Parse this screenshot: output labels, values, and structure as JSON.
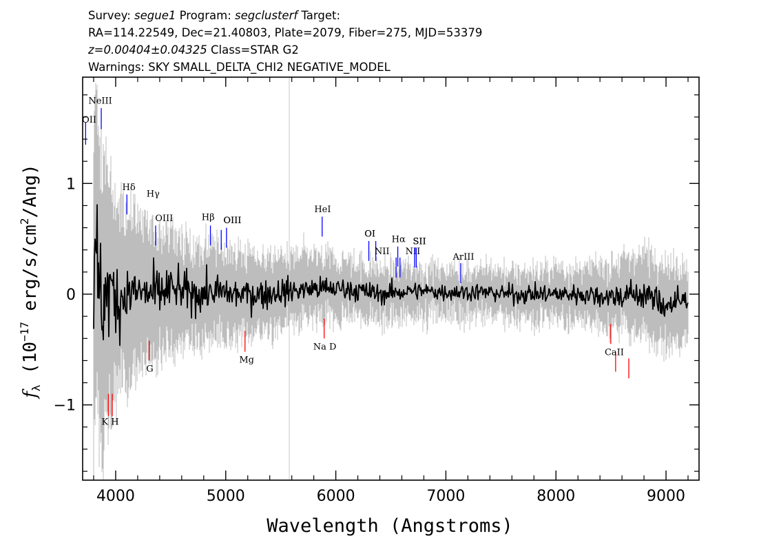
{
  "header": {
    "survey_label": "Survey:",
    "survey": "segue1",
    "program_label": "Program:",
    "program": "segclusterf",
    "target_label": "Target:",
    "line2": "RA=114.22549, Dec=21.40803, Plate=2079, Fiber=275, MJD=53379",
    "redshift": "z=0.00404±0.04325",
    "class_text": "Class=STAR G2",
    "warnings": "Warnings: SKY SMALL_DELTA_CHI2 NEGATIVE_MODEL"
  },
  "chart_data": {
    "type": "line",
    "title": "",
    "xlabel": "Wavelength (Angstroms)",
    "ylabel_parts": [
      "f",
      "λ",
      " (10",
      "−17",
      " erg/s/cm",
      "2",
      "/Ang)"
    ],
    "xlim": [
      3700,
      9300
    ],
    "ylim": [
      -1.68,
      1.96
    ],
    "x_ticks": [
      4000,
      5000,
      6000,
      7000,
      8000,
      9000
    ],
    "x_tick_labels": [
      "4000",
      "5000",
      "6000",
      "7000",
      "8000",
      "9000"
    ],
    "y_ticks": [
      -1,
      0,
      1
    ],
    "y_tick_labels": [
      "−1",
      "0",
      "1"
    ],
    "grid": false,
    "sky_line_x": 5577,
    "series": [
      {
        "role": "error_band",
        "color": "#bdbdbd",
        "x": [
          3800,
          3850,
          3900,
          3950,
          4000,
          4100,
          4200,
          4300,
          4400,
          4500,
          4700,
          5000,
          5300,
          5600,
          5900,
          6200,
          6500,
          6800,
          7100,
          7400,
          7700,
          8000,
          8300,
          8500,
          8700,
          8900,
          9100,
          9200
        ],
        "half_width": [
          1.5,
          1.3,
          1.2,
          1.0,
          0.85,
          0.75,
          0.65,
          0.6,
          0.55,
          0.5,
          0.42,
          0.38,
          0.34,
          0.3,
          0.26,
          0.24,
          0.22,
          0.2,
          0.2,
          0.2,
          0.21,
          0.22,
          0.24,
          0.28,
          0.33,
          0.38,
          0.34,
          0.32
        ]
      },
      {
        "role": "flux",
        "color": "#000000",
        "x": [
          3800,
          3830,
          3850,
          3880,
          3900,
          3950,
          4000,
          4100,
          4200,
          4300,
          4400,
          4500,
          4700,
          4900,
          5100,
          5300,
          5500,
          5800,
          6100,
          6400,
          6700,
          7000,
          7300,
          7600,
          7900,
          8200,
          8500,
          8800,
          9000,
          9200
        ],
        "y": [
          0.0,
          0.3,
          0.05,
          -0.1,
          0.0,
          0.05,
          -0.05,
          0.0,
          0.02,
          0.0,
          0.0,
          0.05,
          0.0,
          0.02,
          0.0,
          0.0,
          0.02,
          0.05,
          0.05,
          0.0,
          0.03,
          0.02,
          0.02,
          0.0,
          0.0,
          0.0,
          -0.02,
          0.0,
          -0.1,
          -0.05
        ]
      }
    ],
    "emission_lines": [
      {
        "label": "OII",
        "x": 3727,
        "y0": 1.35,
        "y1": 1.55,
        "lx": 3760,
        "ly": 1.55
      },
      {
        "label": "NeIII",
        "x": 3869,
        "y0": 1.49,
        "y1": 1.68,
        "lx": 3860,
        "ly": 1.72
      },
      {
        "label": "Hδ",
        "x": 4102,
        "y0": 0.72,
        "y1": 0.9,
        "lx": 4120,
        "ly": 0.94
      },
      {
        "label": "Hγ",
        "x": 4341,
        "y0": 0.85,
        "y1": 0.85,
        "lx": 4340,
        "ly": 0.88
      },
      {
        "label": "OIII",
        "x": 4363,
        "y0": 0.44,
        "y1": 0.62,
        "lx": 4440,
        "ly": 0.66
      },
      {
        "label": "Hβ",
        "x": 4861,
        "y0": 0.44,
        "y1": 0.62,
        "lx": 4840,
        "ly": 0.67
      },
      {
        "label": "OIII",
        "x": 4959,
        "y0": 0.4,
        "y1": 0.58,
        "lx": 5060,
        "ly": 0.64
      },
      {
        "label": "OIII",
        "x": 5007,
        "y0": 0.42,
        "y1": 0.6,
        "lx": 5060,
        "ly": 0.64
      },
      {
        "label": "HeI",
        "x": 5876,
        "y0": 0.52,
        "y1": 0.7,
        "lx": 5880,
        "ly": 0.74
      },
      {
        "label": "OI",
        "x": 6300,
        "y0": 0.3,
        "y1": 0.48,
        "lx": 6310,
        "ly": 0.52
      },
      {
        "label": "OI",
        "x": 6363,
        "y0": 0.3,
        "y1": 0.48,
        "lx": 6310,
        "ly": 0.52
      },
      {
        "label": "NII",
        "x": 6548,
        "y0": 0.15,
        "y1": 0.33,
        "lx": 6420,
        "ly": 0.36
      },
      {
        "label": "Hα",
        "x": 6563,
        "y0": 0.25,
        "y1": 0.43,
        "lx": 6570,
        "ly": 0.47
      },
      {
        "label": "NII",
        "x": 6583,
        "y0": 0.15,
        "y1": 0.33,
        "lx": 6700,
        "ly": 0.36
      },
      {
        "label": "SII",
        "x": 6716,
        "y0": 0.24,
        "y1": 0.42,
        "lx": 6760,
        "ly": 0.45
      },
      {
        "label": "SII",
        "x": 6731,
        "y0": 0.24,
        "y1": 0.42,
        "lx": 6760,
        "ly": 0.45
      },
      {
        "label": "ArIII",
        "x": 7135,
        "y0": 0.1,
        "y1": 0.28,
        "lx": 7160,
        "ly": 0.31
      }
    ],
    "absorption_lines": [
      {
        "label": "K",
        "x": 3934,
        "y0": -0.9,
        "y1": -1.1
      },
      {
        "label": "H",
        "x": 3969,
        "y0": -0.9,
        "y1": -1.1
      },
      {
        "label": "G",
        "x": 4305,
        "y0": -0.42,
        "y1": -0.6,
        "lx": 4310,
        "ly": -0.7
      },
      {
        "label": "Mg",
        "x": 5175,
        "y0": -0.33,
        "y1": -0.52,
        "lx": 5190,
        "ly": -0.62
      },
      {
        "label": "Na D",
        "x": 5894,
        "y0": -0.22,
        "y1": -0.4,
        "lx": 5900,
        "ly": -0.5
      },
      {
        "label": "CaII",
        "x": 8498,
        "y0": -0.27,
        "y1": -0.45
      },
      {
        "label": "CaII",
        "x": 8542,
        "y0": -0.52,
        "y1": -0.7,
        "lx": 8530,
        "ly": -0.55
      },
      {
        "label": "CaII",
        "x": 8662,
        "y0": -0.58,
        "y1": -0.76
      }
    ],
    "kh_label": "K H",
    "kh_label_pos": {
      "x": 3950,
      "y": -1.18
    },
    "emission_color": "#0000ff",
    "absorption_color": "#ff0000"
  }
}
